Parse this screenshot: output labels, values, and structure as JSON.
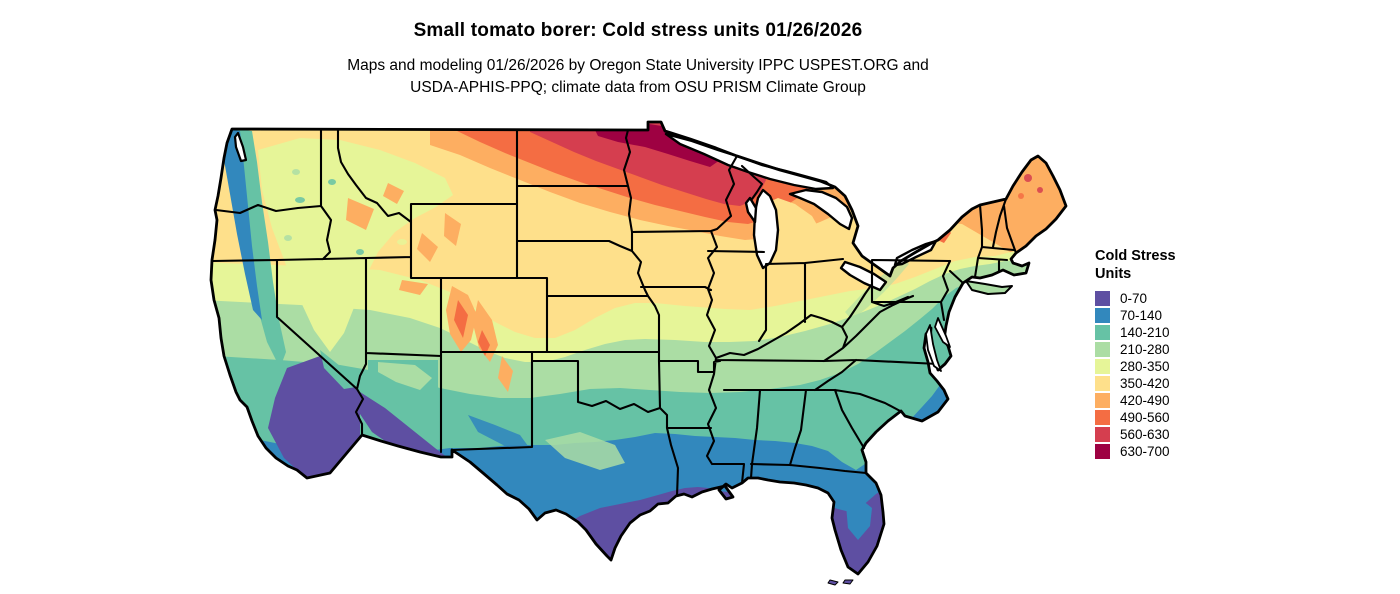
{
  "title": "Small tomato borer: Cold stress units 01/26/2026",
  "subtitle_line1": "Maps and modeling 01/26/2026 by Oregon State University IPPC USPEST.ORG and",
  "subtitle_line2": "USDA-APHIS-PPQ; climate data from OSU PRISM Climate Group",
  "legend": {
    "title_line1": "Cold Stress",
    "title_line2": "Units",
    "items": [
      {
        "range": "0-70",
        "color": "#5e4fa2"
      },
      {
        "range": "70-140",
        "color": "#3288bd"
      },
      {
        "range": "140-210",
        "color": "#66c2a5"
      },
      {
        "range": "210-280",
        "color": "#abdda4"
      },
      {
        "range": "280-350",
        "color": "#e6f598"
      },
      {
        "range": "350-420",
        "color": "#fee08b"
      },
      {
        "range": "420-490",
        "color": "#fdae61"
      },
      {
        "range": "490-560",
        "color": "#f46d43"
      },
      {
        "range": "560-630",
        "color": "#d53e4f"
      },
      {
        "range": "630-700",
        "color": "#9e0142"
      }
    ]
  },
  "map": {
    "region": "Continental United States",
    "kind": "raster choropleth of cold stress units",
    "border_color": "#000000",
    "water_color": "#ffffff",
    "units": "Cold Stress Units",
    "regional_values": [
      {
        "area": "northern Minnesota / northeast North Dakota",
        "value_range": "630-700"
      },
      {
        "area": "northern plains (ND, SD, northern WI, UP Michigan)",
        "value_range": "490-630"
      },
      {
        "area": "Montana east, upstate New York, Maine",
        "value_range": "420-560"
      },
      {
        "area": "central plains, lower Michigan, Ohio valley north",
        "value_range": "280-420"
      },
      {
        "area": "Kansas, Missouri, Kentucky, Virginia, intermountain west",
        "value_range": "210-350"
      },
      {
        "area": "Oklahoma, Tennessee, North Carolina, northern Texas",
        "value_range": "140-280"
      },
      {
        "area": "gulf states south, Georgia, coastal Carolinas, central Texas",
        "value_range": "70-140"
      },
      {
        "area": "south Texas, Louisiana coast, Florida peninsula, southern California and Arizona",
        "value_range": "0-70"
      },
      {
        "area": "Pacific coast strip WA-OR-CA",
        "value_range": "70-210"
      },
      {
        "area": "Colorado / Wyoming / Idaho mountains",
        "value_range": "420-560"
      }
    ]
  }
}
